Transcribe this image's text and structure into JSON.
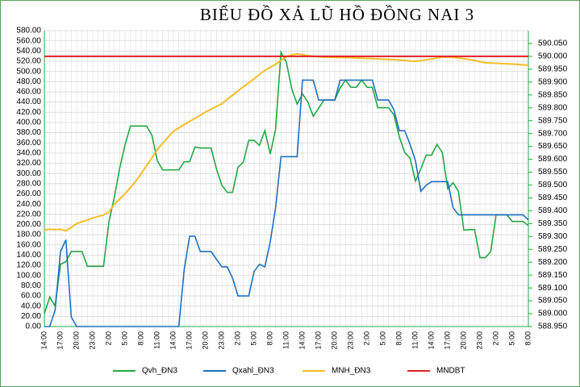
{
  "chart_data": {
    "type": "line",
    "title": "BIỂU ĐỒ XẢ LŨ HỒ ĐỒNG NAI 3",
    "categories": [
      "14:00",
      null,
      null,
      "17:00",
      null,
      null,
      "20:00",
      null,
      null,
      "23:00",
      null,
      null,
      "2:00",
      null,
      null,
      "5:00",
      null,
      null,
      "8:00",
      null,
      null,
      "11:00",
      null,
      null,
      "14:00",
      null,
      null,
      "17:00",
      null,
      null,
      "20:00",
      null,
      null,
      "23:00",
      null,
      null,
      "2:00",
      null,
      null,
      "5:00",
      null,
      null,
      "8:00",
      null,
      null,
      "11:00",
      null,
      null,
      "14:00",
      null,
      null,
      "17:00",
      null,
      null,
      "20:00",
      null,
      null,
      "23:00",
      null,
      null,
      "2:00",
      null,
      null,
      "5:00",
      null,
      null,
      "8:00",
      null,
      null,
      "11:00",
      null,
      null,
      "14:00",
      null,
      null,
      "17:00",
      null,
      null,
      "20:00",
      null,
      null,
      "23:00",
      null,
      null,
      "2:00",
      null,
      null,
      "5:00",
      null,
      null,
      "8:00"
    ],
    "series": [
      {
        "name": "Qvh_ĐN3",
        "color": "#22a844",
        "values": [
          25,
          58,
          40,
          122,
          127,
          147,
          147,
          147,
          118,
          118,
          118,
          118,
          205,
          253,
          310,
          356,
          393,
          393,
          393,
          393,
          375,
          325,
          307,
          307,
          307,
          307,
          323,
          323,
          352,
          350,
          350,
          350,
          309,
          277,
          263,
          263,
          312,
          322,
          365,
          365,
          355,
          384,
          338,
          387,
          538,
          518,
          466,
          436,
          456,
          440,
          412,
          428,
          444,
          444,
          444,
          468,
          483,
          469,
          469,
          483,
          469,
          469,
          429,
          429,
          429,
          415,
          372,
          341,
          330,
          285,
          309,
          336,
          336,
          357,
          341,
          270,
          282,
          265,
          189,
          190,
          190,
          135,
          135,
          147,
          219,
          219,
          219,
          206,
          206,
          206,
          198
        ]
      },
      {
        "name": "Qxahl_ĐN3",
        "color": "#1f6fc0",
        "values": [
          0,
          0,
          32,
          147,
          170,
          19,
          0,
          0,
          0,
          0,
          0,
          0,
          0,
          0,
          0,
          0,
          0,
          0,
          0,
          0,
          0,
          0,
          0,
          0,
          0,
          0,
          111,
          177,
          177,
          147,
          147,
          147,
          132,
          117,
          117,
          95,
          60,
          60,
          60,
          108,
          122,
          117,
          166,
          233,
          333,
          333,
          333,
          333,
          483,
          483,
          483,
          444,
          444,
          444,
          444,
          483,
          483,
          483,
          483,
          483,
          483,
          483,
          444,
          444,
          444,
          425,
          384,
          384,
          357,
          325,
          265,
          277,
          284,
          284,
          284,
          284,
          233,
          219,
          219,
          219,
          219,
          219,
          219,
          219,
          219,
          219,
          219,
          219,
          219,
          219,
          209
        ]
      },
      {
        "name": "MNH_ĐN3",
        "color": "#f5bd28",
        "axis": "y2",
        "values": [
          589.325,
          589.328,
          589.327,
          589.328,
          589.322,
          589.335,
          589.35,
          589.357,
          589.364,
          589.372,
          589.378,
          589.383,
          589.395,
          589.425,
          589.445,
          589.466,
          589.49,
          589.515,
          589.544,
          589.575,
          589.606,
          589.638,
          589.662,
          589.686,
          589.709,
          589.722,
          589.735,
          589.747,
          589.759,
          589.771,
          589.784,
          589.795,
          589.805,
          589.816,
          589.833,
          589.849,
          589.866,
          589.882,
          589.897,
          589.913,
          589.93,
          589.945,
          589.958,
          589.969,
          589.985,
          589.998,
          590.006,
          590.009,
          590.007,
          590.003,
          590.0,
          589.999,
          589.997,
          589.997,
          589.996,
          589.996,
          589.995,
          589.995,
          589.994,
          589.993,
          589.992,
          589.991,
          589.99,
          589.989,
          589.988,
          589.987,
          589.986,
          589.984,
          589.982,
          589.981,
          589.983,
          589.987,
          589.99,
          589.994,
          589.997,
          589.997,
          589.996,
          589.994,
          589.991,
          589.988,
          589.984,
          589.979,
          589.975,
          589.974,
          589.973,
          589.972,
          589.971,
          589.97,
          589.969,
          589.967,
          589.966
        ]
      },
      {
        "name": "MNDBT",
        "color": "#e02020",
        "axis": "y2",
        "values": [
          590,
          590,
          590,
          590,
          590,
          590,
          590,
          590,
          590,
          590,
          590,
          590,
          590,
          590,
          590,
          590,
          590,
          590,
          590,
          590,
          590,
          590,
          590,
          590,
          590,
          590,
          590,
          590,
          590,
          590,
          590,
          590,
          590,
          590,
          590,
          590,
          590,
          590,
          590,
          590,
          590,
          590,
          590,
          590,
          590,
          590,
          590,
          590,
          590,
          590,
          590,
          590,
          590,
          590,
          590,
          590,
          590,
          590,
          590,
          590,
          590,
          590,
          590,
          590,
          590,
          590,
          590,
          590,
          590,
          590,
          590,
          590,
          590,
          590,
          590,
          590,
          590,
          590,
          590,
          590,
          590,
          590,
          590,
          590,
          590,
          590,
          590,
          590,
          590,
          590,
          590
        ]
      }
    ],
    "ylim": [
      0,
      580
    ],
    "yticks": [
      {
        "value": 0,
        "label": "0.00"
      },
      {
        "value": 20,
        "label": "20.00"
      },
      {
        "value": 40,
        "label": "40.00"
      },
      {
        "value": 60,
        "label": "60.00"
      },
      {
        "value": 80,
        "label": "80.00"
      },
      {
        "value": 100,
        "label": "100.00"
      },
      {
        "value": 120,
        "label": "120.00"
      },
      {
        "value": 140,
        "label": "140.00"
      },
      {
        "value": 160,
        "label": "160.00"
      },
      {
        "value": 180,
        "label": "180.00"
      },
      {
        "value": 200,
        "label": "200.00"
      },
      {
        "value": 220,
        "label": "220.00"
      },
      {
        "value": 240,
        "label": "240.00"
      },
      {
        "value": 260,
        "label": "260.00"
      },
      {
        "value": 280,
        "label": "280.00"
      },
      {
        "value": 300,
        "label": "300.00"
      },
      {
        "value": 320,
        "label": "320.00"
      },
      {
        "value": 340,
        "label": "340.00"
      },
      {
        "value": 360,
        "label": "360.00"
      },
      {
        "value": 380,
        "label": "380.00"
      },
      {
        "value": 400,
        "label": "400.00"
      },
      {
        "value": 420,
        "label": "420.00"
      },
      {
        "value": 440,
        "label": "440.00"
      },
      {
        "value": 460,
        "label": "460.00"
      },
      {
        "value": 480,
        "label": "480.00"
      },
      {
        "value": 500,
        "label": "500.00"
      },
      {
        "value": 520,
        "label": "520.00"
      },
      {
        "value": 540,
        "label": "540.00"
      },
      {
        "value": 560,
        "label": "560.00"
      },
      {
        "value": 580,
        "label": "580.00"
      }
    ],
    "y2lim": [
      588.95,
      590.1
    ],
    "y2ticks": [
      {
        "value": 588.95,
        "label": "588.950"
      },
      {
        "value": 589.0,
        "label": "589.000"
      },
      {
        "value": 589.05,
        "label": "589.050"
      },
      {
        "value": 589.1,
        "label": "589.100"
      },
      {
        "value": 589.15,
        "label": "589.150"
      },
      {
        "value": 589.2,
        "label": "589.200"
      },
      {
        "value": 589.25,
        "label": "589.250"
      },
      {
        "value": 589.3,
        "label": "589.300"
      },
      {
        "value": 589.35,
        "label": "589.350"
      },
      {
        "value": 589.4,
        "label": "589.400"
      },
      {
        "value": 589.45,
        "label": "589.450"
      },
      {
        "value": 589.5,
        "label": "589.500"
      },
      {
        "value": 589.55,
        "label": "589.550"
      },
      {
        "value": 589.6,
        "label": "589.600"
      },
      {
        "value": 589.65,
        "label": "589.650"
      },
      {
        "value": 589.7,
        "label": "589.700"
      },
      {
        "value": 589.75,
        "label": "589.750"
      },
      {
        "value": 589.8,
        "label": "589.800"
      },
      {
        "value": 589.85,
        "label": "589.850"
      },
      {
        "value": 589.9,
        "label": "589.900"
      },
      {
        "value": 589.95,
        "label": "589.950"
      },
      {
        "value": 590.0,
        "label": "590.000"
      },
      {
        "value": 590.05,
        "label": "590.050"
      }
    ],
    "grid": true,
    "legend": "bottom"
  }
}
